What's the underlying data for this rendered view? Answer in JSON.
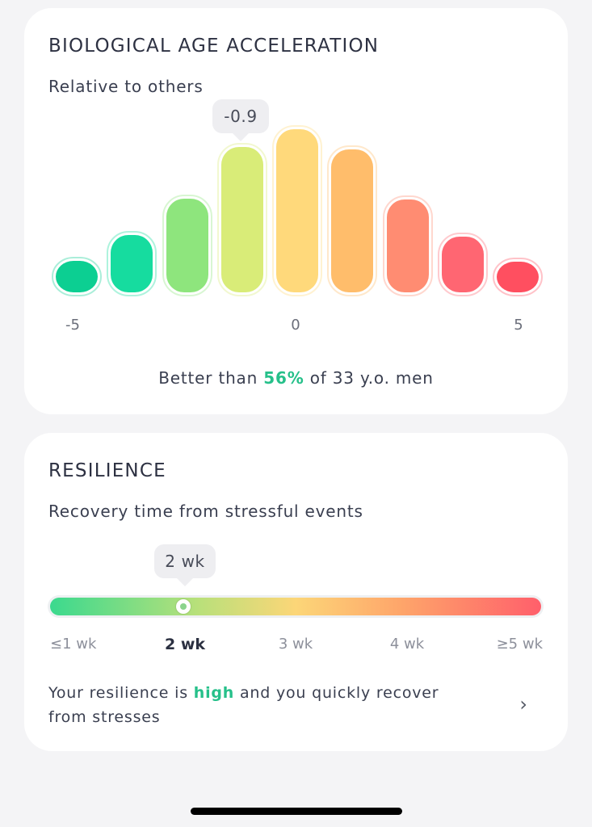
{
  "bio_card": {
    "title": "BIOLOGICAL AGE ACCELERATION",
    "subtitle": "Relative to others",
    "tooltip_value": "-0.9",
    "ticks": [
      "-5",
      "0",
      "5"
    ],
    "summary_prefix": "Better than ",
    "summary_highlight": "56%",
    "summary_suffix": " of 33 y.o. men"
  },
  "chart_data": {
    "type": "bar",
    "x_ticks": [
      "-5",
      "0",
      "5"
    ],
    "highlighted_value": -0.9,
    "bins": 9,
    "bar_colors": [
      "#0ccf92",
      "#16dc9f",
      "#8ee57d",
      "#d9ec78",
      "#ffd97b",
      "#ffbd6b",
      "#ff8c72",
      "#ff6672",
      "#ff4f60"
    ]
  },
  "resilience_card": {
    "title": "RESILIENCE",
    "subtitle": "Recovery time from stressful events",
    "tooltip_value": "2 wk",
    "scale_labels": [
      "≤1 wk",
      "2 wk",
      "3 wk",
      "4 wk",
      "≥5 wk"
    ],
    "selected_index": 1,
    "text_prefix": "Your resilience is ",
    "text_highlight": "high",
    "text_suffix": " and you quickly recover from stresses"
  },
  "colors": {
    "accent_green": "#26c08a",
    "background": "#f4f4f6"
  },
  "icons": {
    "chevron": "chevron-right-icon"
  }
}
